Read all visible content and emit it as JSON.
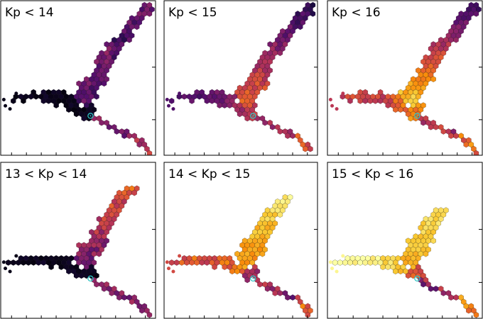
{
  "figure": {
    "panels": [
      {
        "title": "Kp < 14",
        "cmap": "dark_cum"
      },
      {
        "title": "Kp < 15",
        "cmap": "mid_cum"
      },
      {
        "title": "Kp < 16",
        "cmap": "bright_cum"
      },
      {
        "title": "13 < Kp < 14",
        "cmap": "dark_bin"
      },
      {
        "title": "14 < Kp < 15",
        "cmap": "mid_bin"
      },
      {
        "title": "15 < Kp < 16",
        "cmap": "bright_bin"
      }
    ],
    "colormap": "inferno",
    "marker_color": "#2ec4c4"
  },
  "chart_data": {
    "type": "heatmap",
    "subtype": "hexbin",
    "layout": "2x3 grid",
    "xlabel": "",
    "ylabel": "",
    "grid": false,
    "legend": "none",
    "series_shape": "Y-shaped branching distribution",
    "reference_marker": "cyan circle"
  }
}
